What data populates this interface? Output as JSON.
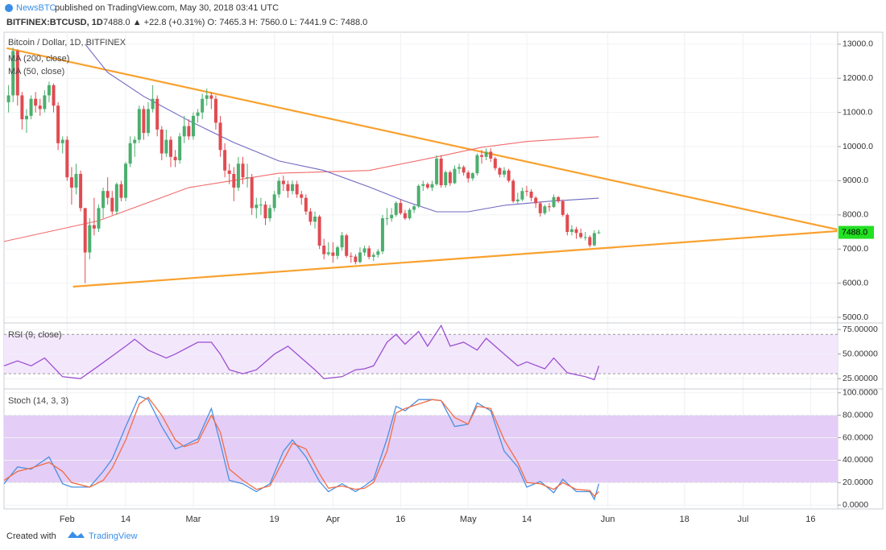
{
  "header": {
    "brand": "NewsBTC",
    "published": "published on TradingView.com, May 30, 2018 03:41 UTC",
    "symbol": "BITFINEX:BTCUSD, 1D",
    "quote": "7488.0 ▲ +22.8 (+0.31%) O: 7465.3 H: 7560.0 L: 7441.9 C: 7488.0"
  },
  "footer": {
    "created": "Created with",
    "brand": "TradingView"
  },
  "chart_data": [
    {
      "type": "candlestick",
      "title": "Bitcoin / Dollar, 1D, BITFINEX",
      "open": [
        11300,
        11500,
        12800,
        11500,
        10800,
        10900,
        11400,
        11200,
        11100,
        11500,
        11800,
        11200,
        10100,
        10200,
        9100,
        8800,
        9200,
        8200,
        6900,
        7700,
        7600,
        8200,
        8700,
        8500,
        8100,
        8900,
        8500,
        9500,
        10100,
        10200,
        11100,
        10400,
        11100,
        11400,
        10500,
        9800,
        10200,
        9700,
        9600,
        10300,
        10600,
        10300,
        10900,
        11000,
        11400,
        11500,
        11400,
        10700,
        9900,
        9300,
        9200,
        8800,
        9500,
        9100,
        9100,
        8200,
        8300,
        8300,
        7900,
        8200,
        8600,
        9000,
        8900,
        8700,
        8900,
        8600,
        8500,
        8100,
        7800,
        7950,
        7100,
        6850,
        6900,
        6800,
        7050,
        7400,
        6800,
        6780,
        6620,
        6900,
        7020,
        6770,
        6830,
        6930,
        7900,
        7900,
        8000,
        8350,
        8050,
        7900,
        8150,
        8250,
        8850,
        8900,
        8800,
        8900,
        9650,
        8870,
        9250,
        8930,
        9350,
        9400,
        9240,
        9070,
        9220,
        9750,
        9700,
        9850,
        9650,
        9370,
        9180,
        9300,
        9000,
        8400,
        8450,
        8700,
        8680,
        8500,
        8340,
        8050,
        8250,
        8230,
        8520,
        8400,
        8000,
        7500,
        7580,
        7470,
        7350,
        7350,
        7110,
        7465.3
      ],
      "high": [
        11800,
        12900,
        12850,
        11600,
        11100,
        11500,
        11600,
        11400,
        11650,
        11900,
        11850,
        11300,
        10300,
        10300,
        9400,
        9500,
        9300,
        8200,
        7900,
        8500,
        8300,
        8800,
        9100,
        8700,
        8950,
        9000,
        9550,
        10300,
        10300,
        11200,
        11200,
        11300,
        11800,
        11500,
        10600,
        10500,
        10300,
        9900,
        10400,
        10900,
        10800,
        11000,
        11100,
        11550,
        11700,
        11600,
        11500,
        10900,
        10100,
        9500,
        9400,
        9700,
        9700,
        9500,
        9200,
        8500,
        8500,
        8400,
        8300,
        8700,
        9100,
        9150,
        9000,
        9000,
        9000,
        8700,
        8600,
        8200,
        8100,
        8000,
        7300,
        7200,
        7200,
        7100,
        7500,
        7450,
        6900,
        6850,
        7050,
        7100,
        7100,
        6900,
        7000,
        8000,
        8200,
        8200,
        8400,
        8450,
        8150,
        8200,
        8300,
        8900,
        9000,
        8950,
        9000,
        9750,
        9750,
        9300,
        9300,
        9450,
        9500,
        9450,
        9300,
        9250,
        9800,
        9900,
        9950,
        9950,
        9700,
        9400,
        9400,
        9350,
        9050,
        8650,
        8800,
        8850,
        8750,
        8550,
        8400,
        8300,
        8350,
        8600,
        8550,
        8450,
        8050,
        7700,
        7650,
        7600,
        7500,
        7400,
        7550,
        7560
      ],
      "low": [
        11000,
        11300,
        11200,
        10500,
        10400,
        10800,
        11000,
        10900,
        11000,
        11300,
        11000,
        9900,
        9800,
        9000,
        8300,
        8600,
        8100,
        6000,
        6700,
        7400,
        7500,
        7900,
        8300,
        8000,
        8000,
        8400,
        8400,
        9400,
        9700,
        10100,
        10200,
        10300,
        11000,
        10300,
        9600,
        9700,
        9400,
        9400,
        9500,
        10100,
        10200,
        10200,
        10700,
        10800,
        11200,
        11100,
        10500,
        9700,
        9100,
        8900,
        8400,
        8700,
        8900,
        8800,
        8000,
        7900,
        8000,
        7700,
        7800,
        8100,
        8500,
        8700,
        8500,
        8600,
        8500,
        8300,
        8000,
        7700,
        7600,
        7000,
        6700,
        6800,
        6600,
        6700,
        6950,
        6750,
        6600,
        6550,
        6580,
        6800,
        6700,
        6650,
        6750,
        6850,
        7700,
        7800,
        7950,
        8000,
        7850,
        7850,
        8050,
        8200,
        8700,
        8750,
        8700,
        8850,
        8800,
        8800,
        8850,
        8900,
        9200,
        9150,
        8950,
        9000,
        9150,
        9500,
        9600,
        9550,
        9300,
        9100,
        9100,
        8950,
        8350,
        8300,
        8400,
        8550,
        8400,
        8200,
        7950,
        8000,
        8100,
        8200,
        8350,
        7950,
        7400,
        7400,
        7300,
        7300,
        7250,
        7050,
        7080,
        7441.9
      ],
      "close": [
        11500,
        12800,
        11500,
        10800,
        10900,
        11400,
        11200,
        11100,
        11500,
        11800,
        11200,
        10100,
        10200,
        9100,
        8800,
        9200,
        8200,
        6900,
        7700,
        7600,
        8200,
        8700,
        8500,
        8100,
        8900,
        8500,
        9500,
        10100,
        10200,
        11100,
        10400,
        11100,
        11400,
        10500,
        9800,
        10200,
        9700,
        9600,
        10300,
        10600,
        10300,
        10900,
        11000,
        11400,
        11500,
        11400,
        10700,
        9900,
        9300,
        9200,
        8800,
        9500,
        9100,
        9100,
        8200,
        8300,
        8300,
        7900,
        8200,
        8600,
        9000,
        8900,
        8700,
        8900,
        8600,
        8500,
        8100,
        7800,
        7950,
        7100,
        6850,
        6900,
        6800,
        7050,
        7400,
        6800,
        6780,
        6620,
        6900,
        7020,
        6770,
        6830,
        6930,
        7900,
        7900,
        8000,
        8350,
        8050,
        7900,
        8150,
        8250,
        8850,
        8900,
        8800,
        8900,
        9650,
        8870,
        9250,
        8930,
        9350,
        9400,
        9240,
        9070,
        9220,
        9750,
        9700,
        9850,
        9650,
        9370,
        9180,
        9300,
        9000,
        8400,
        8450,
        8700,
        8680,
        8500,
        8340,
        8050,
        8250,
        8230,
        8520,
        8400,
        8000,
        7500,
        7580,
        7470,
        7350,
        7350,
        7110,
        7465.3,
        7488
      ],
      "up_color": "#4caf6e",
      "down_color": "#e04b52",
      "overlays": [
        {
          "name": "MA (200, close)",
          "color": "#f26b6b",
          "x": [
            -1,
            20,
            40,
            60,
            80,
            95,
            105,
            115,
            131
          ],
          "values": [
            7220,
            7830,
            8800,
            9220,
            9300,
            9700,
            9980,
            10150,
            10290
          ]
        },
        {
          "name": "MA (50, close)",
          "color": "#6f68c0",
          "x": [
            17,
            22,
            30,
            40,
            50,
            60,
            70,
            80,
            88,
            95,
            102,
            110,
            120,
            131
          ],
          "values": [
            13000,
            12170,
            11470,
            10760,
            10120,
            9580,
            9300,
            8820,
            8400,
            8090,
            8090,
            8280,
            8400,
            8490
          ]
        }
      ],
      "trendlines": [
        {
          "color": "#f9a12e",
          "x": [
            -0.4,
            183.9
          ],
          "values": [
            12882,
            7572
          ]
        },
        {
          "color": "#f9a12e",
          "x": [
            14.3,
            183.9
          ],
          "values": [
            5897,
            7525
          ]
        }
      ],
      "last_label": "7488.0",
      "last_color": "#22e022",
      "xlim": [
        -1,
        184
      ],
      "xticks": [
        {
          "value": 13,
          "label": "Feb"
        },
        {
          "value": 26,
          "label": "14"
        },
        {
          "value": 41,
          "label": "Mar"
        },
        {
          "value": 59,
          "label": "19"
        },
        {
          "value": 72,
          "label": "Apr"
        },
        {
          "value": 87,
          "label": "16"
        },
        {
          "value": 102,
          "label": "May"
        },
        {
          "value": 115,
          "label": "14"
        },
        {
          "value": 133,
          "label": "Jun"
        },
        {
          "value": 150,
          "label": "18"
        },
        {
          "value": 163,
          "label": "Jul"
        },
        {
          "value": 178,
          "label": "16"
        }
      ],
      "ylim": [
        4860,
        13350
      ],
      "yticks": [
        {
          "value": 5000,
          "label": "5000.0"
        },
        {
          "value": 6000,
          "label": "6000.0"
        },
        {
          "value": 7000,
          "label": "7000.0"
        },
        {
          "value": 8000,
          "label": "8000.0"
        },
        {
          "value": 9000,
          "label": "9000.0"
        },
        {
          "value": 10000,
          "label": "10000.0"
        },
        {
          "value": 11000,
          "label": "11000.0"
        },
        {
          "value": 12000,
          "label": "12000.0"
        },
        {
          "value": 13000,
          "label": "13000.0"
        }
      ],
      "grid": true
    },
    {
      "type": "line",
      "title": "RSI (9, close)",
      "series": [
        {
          "color": "#9b4fd1",
          "x": [
            -1,
            2,
            5,
            8,
            12,
            16,
            20,
            26,
            28,
            31,
            35,
            37,
            42,
            45,
            47,
            49,
            52,
            55,
            59,
            62,
            65,
            68,
            70,
            74,
            77,
            79,
            81,
            84,
            86,
            88,
            91,
            93,
            96,
            98,
            101,
            104,
            106,
            110,
            113,
            115,
            119,
            121,
            124,
            128,
            130,
            131
          ],
          "values": [
            38,
            43,
            38,
            46,
            27,
            25,
            38,
            58,
            65,
            54,
            46,
            50,
            62,
            62,
            50,
            34,
            30,
            34,
            50,
            58,
            46,
            34,
            25,
            27,
            34,
            35,
            38,
            62,
            70,
            60,
            73,
            58,
            79,
            58,
            62,
            54,
            66,
            50,
            38,
            42,
            35,
            46,
            31,
            27,
            24,
            38
          ]
        }
      ],
      "band": [
        30,
        70
      ],
      "band_color": "#f3e7fc",
      "ylim": [
        17,
        80
      ],
      "yticks": [
        {
          "value": 25,
          "label": "25.00000"
        },
        {
          "value": 50,
          "label": "50.00000"
        },
        {
          "value": 75,
          "label": "75.00000"
        }
      ],
      "grid": true
    },
    {
      "type": "line",
      "title": "Stoch (14, 3, 3)",
      "series": [
        {
          "color": "#4a90e2",
          "x": [
            -1,
            2,
            5,
            9,
            12,
            14,
            18,
            21,
            23,
            26,
            29,
            31,
            34,
            37,
            39,
            42,
            45,
            47,
            49,
            52,
            55,
            58,
            61,
            63,
            66,
            69,
            71,
            74,
            77,
            79,
            81,
            84,
            86,
            88,
            91,
            94,
            96,
            99,
            102,
            104,
            107,
            110,
            113,
            115,
            118,
            121,
            123,
            126,
            129,
            130,
            131
          ],
          "values": [
            19,
            34,
            32,
            43,
            19,
            16,
            16,
            30,
            41,
            70,
            97,
            94,
            70,
            50,
            53,
            59,
            86,
            55,
            22,
            19,
            12,
            19,
            48,
            58,
            43,
            21,
            12,
            19,
            12,
            17,
            23,
            59,
            88,
            84,
            94,
            94,
            93,
            70,
            72,
            91,
            84,
            48,
            34,
            16,
            21,
            11,
            23,
            12,
            12,
            5,
            19
          ]
        },
        {
          "color": "#f26d44",
          "x": [
            -1,
            2,
            5,
            9,
            12,
            14,
            18,
            21,
            23,
            26,
            29,
            31,
            34,
            37,
            39,
            42,
            45,
            47,
            49,
            52,
            55,
            58,
            61,
            63,
            66,
            69,
            71,
            74,
            77,
            79,
            81,
            84,
            86,
            88,
            91,
            94,
            96,
            99,
            102,
            104,
            107,
            110,
            113,
            115,
            118,
            121,
            123,
            126,
            129,
            130,
            131
          ],
          "values": [
            22,
            30,
            33,
            38,
            30,
            20,
            16,
            22,
            33,
            58,
            90,
            96,
            80,
            58,
            52,
            56,
            80,
            65,
            32,
            22,
            14,
            17,
            40,
            55,
            50,
            28,
            15,
            17,
            14,
            15,
            20,
            48,
            82,
            86,
            90,
            94,
            93,
            78,
            72,
            88,
            86,
            58,
            38,
            20,
            19,
            14,
            20,
            14,
            13,
            8,
            12
          ]
        }
      ],
      "band": [
        20,
        80
      ],
      "band_color": "#e4cdf6",
      "ylim": [
        -2,
        102
      ],
      "yticks": [
        {
          "value": 0,
          "label": "0.0000"
        },
        {
          "value": 20,
          "label": "20.0000"
        },
        {
          "value": 40,
          "label": "40.0000"
        },
        {
          "value": 60,
          "label": "60.0000"
        },
        {
          "value": 80,
          "label": "80.0000"
        },
        {
          "value": 100,
          "label": "100.0000"
        }
      ],
      "grid": true
    }
  ]
}
